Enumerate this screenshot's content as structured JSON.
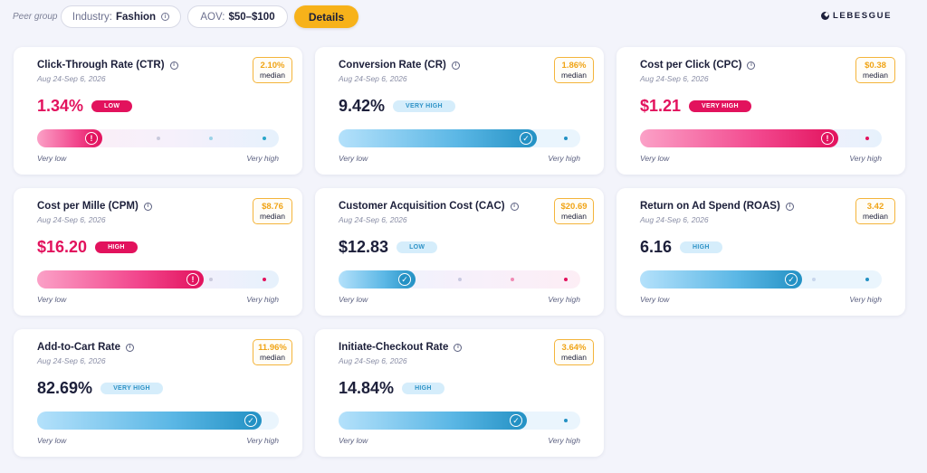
{
  "header": {
    "peer_group_label": "Peer group",
    "industry_label": "Industry:",
    "industry_value": "Fashion",
    "aov_label": "AOV:",
    "aov_value": "$50–$100",
    "details_label": "Details",
    "brand": "LEBESGUE"
  },
  "scale": {
    "low": "Very low",
    "high": "Very high"
  },
  "colors": {
    "bad": "#e2125d",
    "good": "#2391c4",
    "accent": "#f7b21a"
  },
  "cards": [
    {
      "title": "Click-Through Rate (CTR)",
      "date": "Aug 24-Sep 6, 2026",
      "median_value": "2.10%",
      "median_label": "median",
      "value": "1.34%",
      "badge": "LOW",
      "tone": "bad",
      "level": 0.27
    },
    {
      "title": "Conversion Rate (CR)",
      "date": "Aug 24-Sep 6, 2026",
      "median_value": "1.86%",
      "median_label": "median",
      "value": "9.42%",
      "badge": "VERY HIGH",
      "tone": "good",
      "level": 0.82
    },
    {
      "title": "Cost per Click (CPC)",
      "date": "Aug 24-Sep 6, 2026",
      "median_value": "$0.38",
      "median_label": "median",
      "value": "$1.21",
      "badge": "VERY HIGH",
      "tone": "bad",
      "level": 0.82
    },
    {
      "title": "Cost per Mille (CPM)",
      "date": "Aug 24-Sep 6, 2026",
      "median_value": "$8.76",
      "median_label": "median",
      "value": "$16.20",
      "badge": "HIGH",
      "tone": "bad",
      "level": 0.69
    },
    {
      "title": "Customer Acquisition Cost (CAC)",
      "date": "Aug 24-Sep 6, 2026",
      "median_value": "$20.69",
      "median_label": "median",
      "value": "$12.83",
      "badge": "LOW",
      "tone": "good",
      "level": 0.32
    },
    {
      "title": "Return on Ad Spend (ROAS)",
      "date": "Aug 24-Sep 6, 2026",
      "median_value": "3.42",
      "median_label": "median",
      "value": "6.16",
      "badge": "HIGH",
      "tone": "good",
      "level": 0.67
    },
    {
      "title": "Add-to-Cart Rate",
      "date": "Aug 24-Sep 6, 2026",
      "median_value": "11.96%",
      "median_label": "median",
      "value": "82.69%",
      "badge": "VERY HIGH",
      "tone": "good",
      "level": 0.93
    },
    {
      "title": "Initiate-Checkout Rate",
      "date": "Aug 24-Sep 6, 2026",
      "median_value": "3.64%",
      "median_label": "median",
      "value": "14.84%",
      "badge": "HIGH",
      "tone": "good",
      "level": 0.78
    }
  ]
}
